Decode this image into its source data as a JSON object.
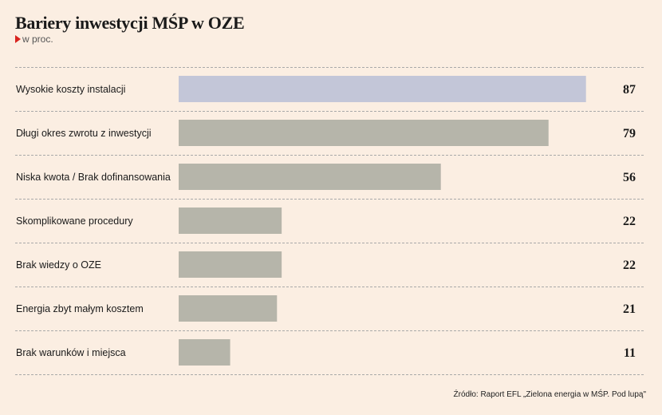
{
  "chart_data": {
    "type": "bar",
    "orientation": "horizontal",
    "title": "Bariery inwestycji MŚP w OZE",
    "subtitle": "w proc.",
    "categories": [
      "Wysokie koszty instalacji",
      "Długi okres zwrotu z inwestycji",
      "Niska kwota / Brak dofinansowania",
      "Skomplikowane procedury",
      "Brak wiedzy o OZE",
      "Energia zbyt małym kosztem",
      "Brak warunków i miejsca"
    ],
    "values": [
      87,
      79,
      56,
      22,
      22,
      21,
      11
    ],
    "xlim": [
      0,
      100
    ],
    "grid": false,
    "highlight_index": 0,
    "colors": {
      "highlight": "#c3c6d8",
      "bar": "#b6b5aa",
      "separator": "#a9a9a9",
      "marker": "#d8231e",
      "background": "#fbeee2"
    }
  },
  "source": "Źródło: Raport EFL „Zielona energia w MŚP. Pod lupą\""
}
